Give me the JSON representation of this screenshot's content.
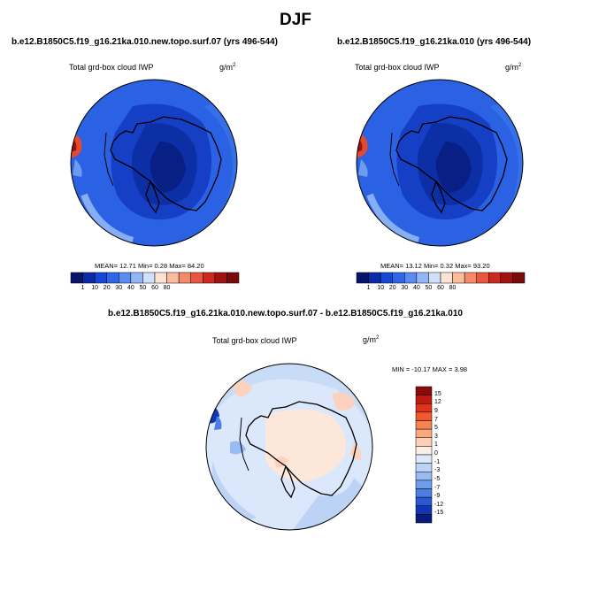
{
  "title": "DJF",
  "panels": [
    {
      "id": "left",
      "title": "b.e12.B1850C5.f19_g16.21ka.010.new.topo.surf.07 (yrs 496-544)",
      "variable": "Total grd-box cloud IWP",
      "units_base": "g/m",
      "units_exp": "2",
      "stats": "MEAN=  12.71  Min=   0.28  Max=  84.20",
      "colorbar": {
        "labels": [
          "1",
          "10",
          "20",
          "30",
          "40",
          "50",
          "60",
          "80"
        ],
        "colors": [
          "#08136b",
          "#0a2aa6",
          "#1548d6",
          "#2f66e6",
          "#5b8af0",
          "#93b6f6",
          "#cfe0fb",
          "#fde3d3",
          "#fbbb9d",
          "#f6896a",
          "#e85540",
          "#cc2a1e",
          "#a01212",
          "#7a0a0a"
        ]
      }
    },
    {
      "id": "right",
      "title": "b.e12.B1850C5.f19_g16.21ka.010 (yrs 496-544)",
      "variable": "Total grd-box cloud IWP",
      "units_base": "g/m",
      "units_exp": "2",
      "stats": "MEAN=  13.12  Min=   0.32  Max=  93.20",
      "colorbar": {
        "labels": [
          "1",
          "10",
          "20",
          "30",
          "40",
          "50",
          "60",
          "80"
        ],
        "colors": [
          "#08136b",
          "#0a2aa6",
          "#1548d6",
          "#2f66e6",
          "#5b8af0",
          "#93b6f6",
          "#cfe0fb",
          "#fde3d3",
          "#fbbb9d",
          "#f6896a",
          "#e85540",
          "#cc2a1e",
          "#a01212",
          "#7a0a0a"
        ]
      }
    },
    {
      "id": "diff",
      "title": "b.e12.B1850C5.f19_g16.21ka.010.new.topo.surf.07 - b.e12.B1850C5.f19_g16.21ka.010",
      "variable": "Total grd-box cloud IWP",
      "units_base": "g/m",
      "units_exp": "2",
      "stats": "MIN = -10.17 MAX =   3.98",
      "colorbar": {
        "labels": [
          "15",
          "12",
          "9",
          "7",
          "5",
          "3",
          "1",
          "0",
          "-1",
          "-3",
          "-5",
          "-7",
          "-9",
          "-12",
          "-15"
        ],
        "colors": [
          "#8b0a0a",
          "#bf1a10",
          "#e0321c",
          "#f0582e",
          "#f68350",
          "#faa97c",
          "#fcd0b4",
          "#fbeee4",
          "#dde9fa",
          "#bcd3f6",
          "#98bbf2",
          "#6f9cec",
          "#4b7de4",
          "#2a58d4",
          "#1235b4",
          "#081a7e"
        ]
      }
    }
  ]
}
